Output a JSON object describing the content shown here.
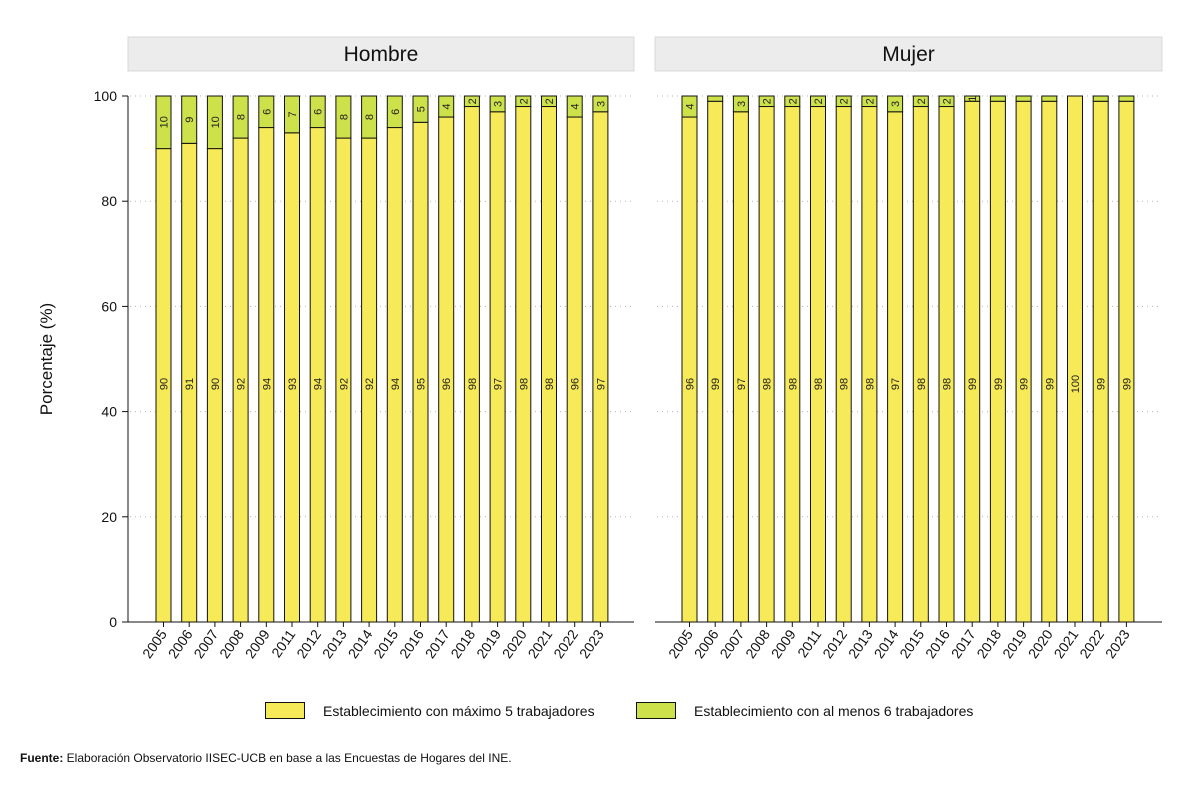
{
  "chart_data": {
    "type": "bar",
    "stacked": true,
    "ylabel": "Porcentaje (%)",
    "ylim": [
      0,
      100
    ],
    "yticks": [
      0,
      20,
      40,
      60,
      80,
      100
    ],
    "grid": true,
    "legend_position": "bottom",
    "series_names": [
      "Establecimiento con máximo 5 trabajadores",
      "Establecimiento con al menos 6 trabajadores"
    ],
    "colors": [
      "#f7ea58",
      "#cde24a"
    ],
    "panels": [
      {
        "title": "Hombre",
        "categories": [
          "2005",
          "2006",
          "2007",
          "2008",
          "2009",
          "2011",
          "2012",
          "2013",
          "2014",
          "2015",
          "2016",
          "2017",
          "2018",
          "2019",
          "2020",
          "2021",
          "2022",
          "2023"
        ],
        "series": [
          {
            "name": "Establecimiento con máximo 5 trabajadores",
            "values": [
              90,
              91,
              90,
              92,
              94,
              93,
              94,
              92,
              92,
              94,
              95,
              96,
              98,
              97,
              98,
              98,
              96,
              97
            ],
            "labels": [
              "90",
              "91",
              "90",
              "92",
              "94",
              "93",
              "94",
              "92",
              "92",
              "94",
              "95",
              "96",
              "98",
              "97",
              "98",
              "98",
              "96",
              "97"
            ]
          },
          {
            "name": "Establecimiento con al menos 6 trabajadores",
            "values": [
              10,
              9,
              10,
              8,
              6,
              7,
              6,
              8,
              8,
              6,
              5,
              4,
              2,
              3,
              2,
              2,
              4,
              3
            ],
            "labels": [
              "10",
              "9",
              "10",
              "8",
              "6",
              "7",
              "6",
              "8",
              "8",
              "6",
              "5",
              "4",
              "2",
              "3",
              "2",
              "2",
              "4",
              "3"
            ]
          }
        ]
      },
      {
        "title": "Mujer",
        "categories": [
          "2005",
          "2006",
          "2007",
          "2008",
          "2009",
          "2011",
          "2012",
          "2013",
          "2014",
          "2015",
          "2016",
          "2017",
          "2018",
          "2019",
          "2020",
          "2021",
          "2022",
          "2023"
        ],
        "series": [
          {
            "name": "Establecimiento con máximo 5 trabajadores",
            "values": [
              96,
              99,
              97,
              98,
              98,
              98,
              98,
              98,
              97,
              98,
              98,
              99,
              99,
              99,
              99,
              100,
              99,
              99
            ],
            "labels": [
              "96",
              "99",
              "97",
              "98",
              "98",
              "98",
              "98",
              "98",
              "97",
              "98",
              "98",
              "99",
              "99",
              "99",
              "99",
              "100",
              "99",
              "99"
            ]
          },
          {
            "name": "Establecimiento con al menos 6 trabajadores",
            "values": [
              4,
              1,
              3,
              2,
              2,
              2,
              2,
              2,
              3,
              2,
              2,
              1,
              1,
              1,
              1,
              0,
              1,
              1
            ],
            "labels": [
              "4",
              "",
              "3",
              "2",
              "2",
              "2",
              "2",
              "2",
              "3",
              "2",
              "2",
              "1",
              "",
              "",
              "",
              "",
              "",
              ""
            ]
          }
        ]
      }
    ]
  },
  "legend": {
    "item1": "Establecimiento con máximo 5 trabajadores",
    "item2": "Establecimiento con al menos 6 trabajadores"
  },
  "source": {
    "label": "Fuente:",
    "text": " Elaboración Observatorio IISEC-UCB en base a las Encuestas de Hogares del INE."
  }
}
